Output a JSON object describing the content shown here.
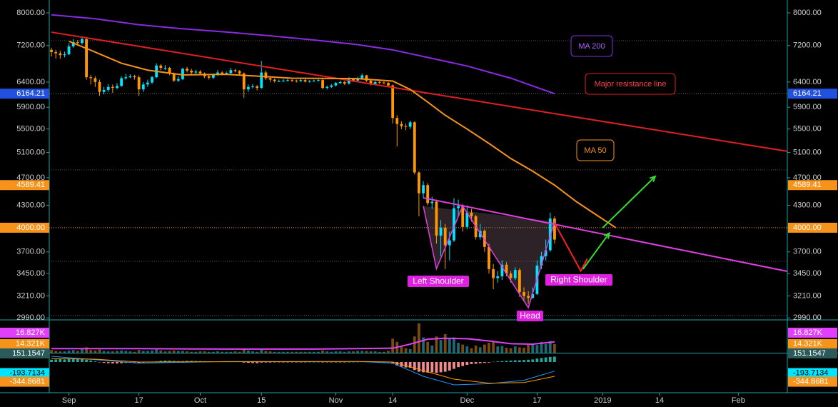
{
  "chart_data": {
    "type": "candlestick",
    "candles": {
      "up_color": "#00e5ff",
      "down_color": "#ff9800",
      "open": [
        7100,
        7050,
        7020,
        6980,
        7000,
        7180,
        7280,
        7260,
        7350,
        6500,
        6480,
        6400,
        6200,
        6240,
        6300,
        6280,
        6320,
        6480,
        6500,
        6520,
        6500,
        6250,
        6350,
        6390,
        6500,
        6750,
        6700,
        6700,
        6580,
        6430,
        6460,
        6680,
        6640,
        6600,
        6620,
        6580,
        6520,
        6490,
        6550,
        6600,
        6570,
        6590,
        6650,
        6630,
        6580,
        6250,
        6300,
        6310,
        6280,
        6600,
        6480,
        6450,
        6420,
        6420,
        6430,
        6440,
        6430,
        6420,
        6440,
        6410,
        6420,
        6430,
        6440,
        6280,
        6300,
        6330,
        6380,
        6400,
        6370,
        6470,
        6430,
        6480,
        6540,
        6430,
        6360,
        6400,
        6390,
        6380,
        6330,
        5700,
        5590,
        5550,
        5540,
        5620,
        4780,
        4470,
        4590,
        4330,
        4350,
        3900,
        4000,
        3780,
        3840,
        4260,
        4290,
        4010,
        4200,
        4150,
        3880,
        3960,
        3760,
        3500,
        3400,
        3420,
        3550,
        3450,
        3400,
        3490,
        3250,
        3210,
        3190,
        3230,
        3540,
        3650,
        3720,
        4120
      ],
      "high": [
        7150,
        7100,
        7080,
        7060,
        7250,
        7350,
        7330,
        7420,
        7400,
        6550,
        6520,
        6450,
        6300,
        6360,
        6350,
        6380,
        6520,
        6570,
        6560,
        6550,
        6540,
        6400,
        6450,
        6530,
        6800,
        6780,
        6760,
        6720,
        6600,
        6520,
        6700,
        6720,
        6680,
        6660,
        6650,
        6600,
        6550,
        6580,
        6650,
        6630,
        6620,
        6700,
        6680,
        6650,
        6600,
        6350,
        6360,
        6340,
        6850,
        6640,
        6500,
        6470,
        6450,
        6460,
        6470,
        6460,
        6450,
        6470,
        6460,
        6440,
        6450,
        6460,
        6460,
        6330,
        6360,
        6400,
        6430,
        6420,
        6500,
        6490,
        6510,
        6580,
        6550,
        6450,
        6420,
        6420,
        6410,
        6400,
        6350,
        5750,
        5640,
        5600,
        5650,
        5640,
        4800,
        4650,
        4620,
        4420,
        4380,
        4100,
        4050,
        3950,
        4400,
        4380,
        4320,
        4300,
        4250,
        4170,
        4050,
        3980,
        3800,
        3560,
        3480,
        3600,
        3580,
        3480,
        3520,
        3510,
        3300,
        3260,
        3300,
        3600,
        3700,
        3850,
        4200,
        4150
      ],
      "low": [
        6950,
        6900,
        6900,
        6930,
        6980,
        7150,
        7200,
        7220,
        6450,
        6350,
        6300,
        6120,
        6150,
        6200,
        6180,
        6250,
        6300,
        6450,
        6480,
        6450,
        6120,
        6200,
        6300,
        6360,
        6480,
        6650,
        6650,
        6540,
        6400,
        6400,
        6440,
        6600,
        6550,
        6570,
        6540,
        6480,
        6450,
        6460,
        6530,
        6540,
        6550,
        6570,
        6600,
        6550,
        6080,
        6200,
        6270,
        6230,
        6260,
        6440,
        6400,
        6390,
        6400,
        6400,
        6410,
        6400,
        6390,
        6400,
        6390,
        6390,
        6400,
        6410,
        6250,
        6250,
        6280,
        6310,
        6360,
        6340,
        6350,
        6400,
        6410,
        6460,
        6400,
        6330,
        6340,
        6360,
        6350,
        6300,
        5600,
        5200,
        5500,
        5480,
        5500,
        4750,
        4150,
        4400,
        4300,
        4250,
        3800,
        3650,
        3500,
        3600,
        3820,
        4150,
        3950,
        3980,
        4080,
        3850,
        3850,
        3700,
        3450,
        3280,
        3350,
        3380,
        3420,
        3350,
        3380,
        3200,
        3150,
        3130,
        3180,
        3220,
        3500,
        3600,
        3700,
        3800
      ],
      "close": [
        7050,
        7020,
        6980,
        7000,
        7180,
        7280,
        7260,
        7350,
        6500,
        6480,
        6400,
        6200,
        6240,
        6300,
        6280,
        6320,
        6480,
        6500,
        6520,
        6500,
        6250,
        6350,
        6390,
        6500,
        6750,
        6700,
        6700,
        6580,
        6430,
        6460,
        6680,
        6640,
        6600,
        6620,
        6580,
        6520,
        6490,
        6550,
        6600,
        6570,
        6590,
        6650,
        6630,
        6580,
        6250,
        6300,
        6310,
        6280,
        6600,
        6480,
        6450,
        6420,
        6420,
        6430,
        6440,
        6430,
        6420,
        6440,
        6410,
        6420,
        6430,
        6440,
        6280,
        6300,
        6330,
        6380,
        6400,
        6370,
        6470,
        6430,
        6480,
        6540,
        6430,
        6360,
        6400,
        6390,
        6380,
        6330,
        5700,
        5590,
        5550,
        5540,
        5620,
        4780,
        4470,
        4590,
        4330,
        4350,
        3900,
        4000,
        3780,
        3840,
        4260,
        4290,
        4010,
        4200,
        4150,
        3880,
        3960,
        3760,
        3500,
        3400,
        3420,
        3550,
        3450,
        3400,
        3490,
        3250,
        3210,
        3190,
        3230,
        3540,
        3650,
        3720,
        4120,
        3850
      ]
    },
    "ylim": [
      2978,
      8339
    ],
    "log_scale": true,
    "yticks": [
      {
        "value": 8000,
        "label": "8000.00"
      },
      {
        "value": 7200,
        "label": "7200.00"
      },
      {
        "value": 6400,
        "label": "6400.00"
      },
      {
        "value": 5900,
        "label": "5900.00"
      },
      {
        "value": 5500,
        "label": "5500.00"
      },
      {
        "value": 5100,
        "label": "5100.00"
      },
      {
        "value": 4700,
        "label": "4700.00"
      },
      {
        "value": 4300,
        "label": "4300.00"
      },
      {
        "value": 4000,
        "label": "4000.00"
      },
      {
        "value": 3700,
        "label": "3700.00"
      },
      {
        "value": 3450,
        "label": "3450.00"
      },
      {
        "value": 3210,
        "label": "3210.00"
      },
      {
        "value": 2990,
        "label": "2990.00"
      }
    ],
    "xlim": [
      -0.5,
      168.2
    ],
    "xticks": [
      {
        "value": 4,
        "label": "Sep"
      },
      {
        "value": 20,
        "label": "17"
      },
      {
        "value": 34,
        "label": "Oct"
      },
      {
        "value": 48,
        "label": "15"
      },
      {
        "value": 65,
        "label": "Nov"
      },
      {
        "value": 78,
        "label": "14"
      },
      {
        "value": 95,
        "label": "Dec"
      },
      {
        "value": 111,
        "label": "17"
      },
      {
        "value": 126,
        "label": "2019"
      },
      {
        "value": 139,
        "label": "14"
      },
      {
        "value": 157,
        "label": "Feb"
      }
    ],
    "lines": [
      {
        "name": "MA 200",
        "color": "#8a2be2",
        "x": [
          0,
          10,
          20,
          30,
          40,
          50,
          60,
          70,
          78,
          85,
          95,
          105,
          115
        ],
        "y": [
          7950,
          7850,
          7700,
          7600,
          7520,
          7430,
          7330,
          7220,
          7100,
          6950,
          6740,
          6480,
          6164.21
        ]
      },
      {
        "name": "Major resistance line",
        "color": "#e02020",
        "x": [
          0,
          168.2
        ],
        "y": [
          7517,
          5118
        ]
      },
      {
        "name": "MA 50",
        "color": "#f7931a",
        "x": [
          4,
          10,
          16,
          22,
          30,
          40,
          55,
          70,
          78,
          82,
          86,
          90,
          95,
          100,
          105,
          110,
          115,
          120,
          129
        ],
        "y": [
          7300,
          7050,
          6800,
          6650,
          6550,
          6560,
          6480,
          6470,
          6420,
          6250,
          6000,
          5750,
          5500,
          5250,
          5000,
          4800,
          4589.41,
          4350,
          4000
        ]
      },
      {
        "color": "#e040e0",
        "x": [
          85,
          168.2
        ],
        "y": [
          4405,
          3475
        ]
      }
    ],
    "pattern": {
      "color": "#e040e0",
      "fill": "#806070",
      "labels": [
        "Left Shoulder",
        "Head",
        "Right Shoulder"
      ],
      "x": [
        85,
        88,
        94,
        109,
        115
      ],
      "y": [
        4290,
        3505,
        4290,
        3090,
        4080
      ]
    },
    "arrows": [
      {
        "color": "#ff2020",
        "x": [
          115,
          121,
          122.5
        ],
        "y": [
          4060,
          3480,
          3620
        ]
      },
      {
        "color": "#33dd33",
        "x": [
          121.5,
          127.5
        ],
        "y": [
          3500,
          3930
        ]
      },
      {
        "color": "#33dd33",
        "x": [
          126,
          138
        ],
        "y": [
          4000,
          4720
        ]
      }
    ],
    "hlines": [
      {
        "value": 4000,
        "color": "#f7931a"
      },
      {
        "value": 6164.21,
        "color": "#777777"
      },
      {
        "value": 7312,
        "color": "#555555"
      },
      {
        "value": 4821,
        "color": "#555555"
      },
      {
        "value": 3589,
        "color": "#555555"
      },
      {
        "value": 3015,
        "color": "#555555"
      }
    ],
    "price_labels": [
      {
        "value": 6164.21,
        "color": "#2251e0"
      },
      {
        "value": 4589.41,
        "color": "#f7931a"
      },
      {
        "value": 4000,
        "label": "4000.00",
        "color": "#f7931a"
      }
    ],
    "volume": {
      "up_color": "#1d6873",
      "down_color": "#7a4a10",
      "ylim": [
        12.4,
        19.5
      ],
      "values": [
        13.0,
        12.8,
        12.7,
        12.7,
        12.9,
        13.0,
        12.8,
        13.2,
        13.6,
        13.0,
        12.9,
        13.1,
        12.8,
        12.7,
        12.7,
        12.8,
        12.9,
        12.8,
        12.7,
        12.6,
        13.0,
        12.8,
        12.8,
        12.9,
        13.1,
        12.9,
        12.7,
        12.8,
        12.9,
        12.8,
        12.8,
        12.7,
        12.6,
        12.6,
        12.7,
        12.7,
        12.6,
        12.6,
        12.7,
        12.6,
        12.6,
        12.6,
        12.7,
        12.6,
        13.4,
        12.9,
        12.7,
        12.6,
        13.2,
        12.8,
        12.7,
        12.6,
        12.6,
        12.6,
        12.6,
        12.6,
        12.6,
        12.6,
        12.6,
        12.6,
        12.6,
        12.6,
        12.9,
        12.7,
        12.6,
        12.7,
        12.7,
        12.6,
        12.7,
        12.7,
        12.8,
        12.8,
        12.8,
        12.7,
        12.7,
        12.6,
        12.6,
        12.8,
        15.5,
        14.8,
        13.8,
        13.4,
        13.2,
        16.0,
        18.9,
        15.8,
        14.8,
        14.0,
        16.0,
        15.2,
        16.5,
        15.4,
        15.8,
        14.6,
        14.2,
        13.8,
        13.4,
        14.0,
        13.6,
        14.2,
        14.6,
        14.9,
        13.8,
        13.9,
        13.5,
        13.4,
        13.8,
        13.6,
        13.5,
        14.2,
        14.4,
        14.1,
        14.8,
        14.3,
        15.0,
        14.3
      ],
      "ma": {
        "color": "#e040fb",
        "x": [
          0,
          20,
          40,
          60,
          78,
          82,
          86,
          90,
          95,
          100,
          105,
          110,
          115
        ],
        "y": [
          13.3,
          13.3,
          13.2,
          13.2,
          13.4,
          14.3,
          15.4,
          15.6,
          15.5,
          15.0,
          14.4,
          14.3,
          14.8
        ]
      },
      "labels": [
        {
          "value": 16.827,
          "label": "16.827K",
          "color": "#e040fb"
        },
        {
          "value": 14.321,
          "label": "14.321K",
          "color": "#f7931a"
        }
      ]
    },
    "oscillator": {
      "up_color": "#26a69a",
      "down_color": "#f28b8b",
      "ylim": [
        -537.5,
        150
      ],
      "histogram": [
        40,
        45,
        50,
        45,
        50,
        55,
        55,
        60,
        40,
        25,
        10,
        -5,
        -15,
        -20,
        -25,
        -25,
        -20,
        -15,
        -10,
        -5,
        -15,
        -10,
        -5,
        0,
        10,
        20,
        25,
        25,
        20,
        15,
        15,
        20,
        20,
        18,
        16,
        14,
        12,
        10,
        10,
        10,
        8,
        8,
        8,
        6,
        -10,
        -15,
        -18,
        -20,
        -10,
        -8,
        -8,
        -6,
        -5,
        -4,
        -3,
        -2,
        -2,
        -1,
        -1,
        0,
        0,
        0,
        -4,
        -5,
        -4,
        -3,
        -2,
        -2,
        0,
        1,
        2,
        4,
        3,
        2,
        2,
        1,
        0,
        -1,
        -30,
        -60,
        -80,
        -95,
        -100,
        -140,
        -170,
        -180,
        -185,
        -180,
        -190,
        -180,
        -170,
        -150,
        -120,
        -90,
        -70,
        -50,
        -35,
        -30,
        -20,
        -15,
        -10,
        5,
        10,
        15,
        20,
        25,
        30,
        30,
        35,
        40,
        45,
        60,
        70,
        80,
        90,
        95
      ],
      "macd": {
        "color": "#2196f3",
        "x": [
          0,
          10,
          20,
          40,
          70,
          78,
          85,
          92,
          100,
          108,
          115
        ],
        "y": [
          100,
          40,
          -20,
          10,
          10,
          -20,
          -250,
          -400,
          -380,
          -320,
          -160
        ]
      },
      "signal": {
        "color": "#ff9800",
        "x": [
          0,
          10,
          20,
          40,
          70,
          78,
          85,
          92,
          100,
          108,
          115
        ],
        "y": [
          60,
          50,
          0,
          5,
          10,
          0,
          -150,
          -300,
          -370,
          -360,
          -250
        ]
      },
      "labels": [
        {
          "value": 151.1547,
          "color": "#2a5a5a"
        },
        {
          "value": -193.7134,
          "color": "#00e5ff"
        },
        {
          "value": -344.8681,
          "color": "#f7931a"
        }
      ]
    }
  }
}
